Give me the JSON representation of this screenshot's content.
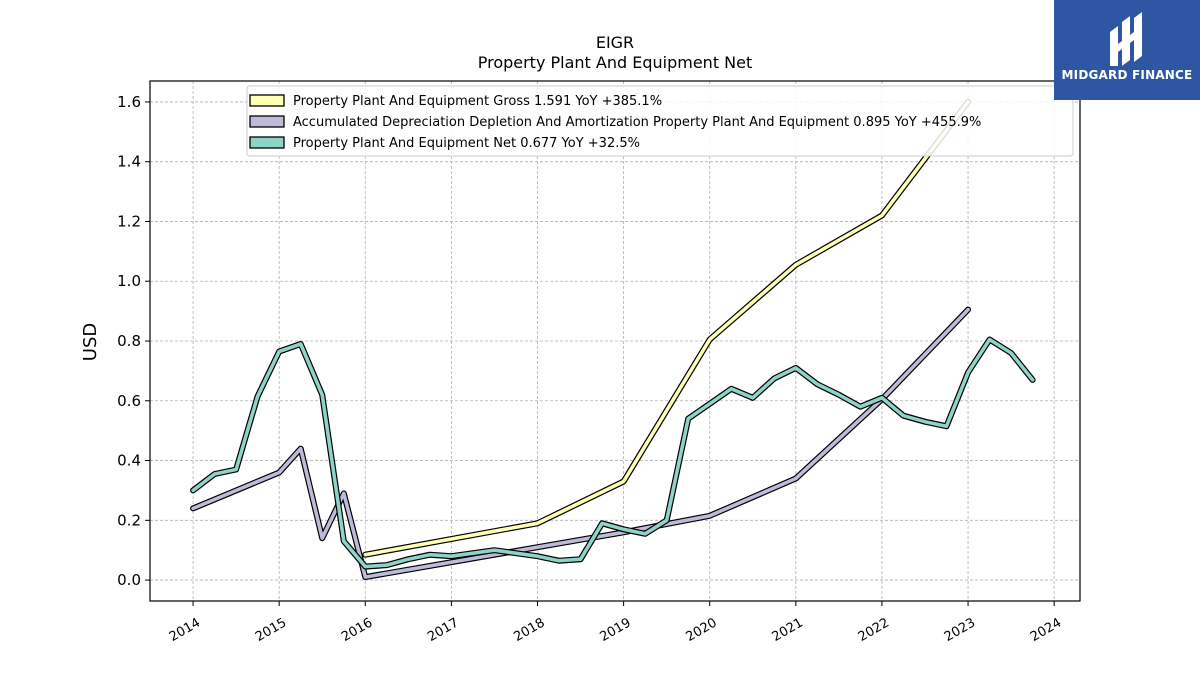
{
  "chart_data": {
    "type": "line",
    "title": "EIGR",
    "subtitle": "Property Plant And Equipment Net",
    "ylabel": "USD",
    "xlabel": "",
    "xlim": [
      2013.5,
      2024.3
    ],
    "ylim": [
      -0.07,
      1.67
    ],
    "yticks": [
      "0.0",
      "0.2",
      "0.4",
      "0.6",
      "0.8",
      "1.0",
      "1.2",
      "1.4",
      "1.6"
    ],
    "ytick_values": [
      0.0,
      0.2,
      0.4,
      0.6,
      0.8,
      1.0,
      1.2,
      1.4,
      1.6
    ],
    "xticks": [
      "2014",
      "2015",
      "2016",
      "2017",
      "2018",
      "2019",
      "2020",
      "2021",
      "2022",
      "2023",
      "2024"
    ],
    "xtick_values": [
      2014,
      2015,
      2016,
      2017,
      2018,
      2019,
      2020,
      2021,
      2022,
      2023,
      2024
    ],
    "grid": true,
    "legend_position": "top",
    "series": [
      {
        "name": "Property Plant And Equipment Gross  1.591 YoY +385.1%",
        "color": "#ffffb3",
        "points": [
          [
            2016.0,
            0.085
          ],
          [
            2018.0,
            0.19
          ],
          [
            2019.0,
            0.33
          ],
          [
            2020.0,
            0.805
          ],
          [
            2021.0,
            1.055
          ],
          [
            2022.0,
            1.22
          ],
          [
            2023.0,
            1.6
          ]
        ]
      },
      {
        "name": "Accumulated Depreciation Depletion And Amortization Property Plant And Equipment  0.895 YoY +455.9%",
        "color": "#bebada",
        "points": [
          [
            2014.0,
            0.24
          ],
          [
            2015.0,
            0.36
          ],
          [
            2015.25,
            0.44
          ],
          [
            2015.5,
            0.14
          ],
          [
            2015.75,
            0.29
          ],
          [
            2016.0,
            0.01
          ],
          [
            2018.0,
            0.11
          ],
          [
            2019.0,
            0.16
          ],
          [
            2020.0,
            0.215
          ],
          [
            2021.0,
            0.34
          ],
          [
            2022.0,
            0.605
          ],
          [
            2023.0,
            0.905
          ]
        ]
      },
      {
        "name": "Property Plant And Equipment Net  0.677 YoY +32.5%",
        "color": "#8dd3c7",
        "points": [
          [
            2014.0,
            0.3
          ],
          [
            2014.25,
            0.355
          ],
          [
            2014.5,
            0.37
          ],
          [
            2014.75,
            0.615
          ],
          [
            2015.0,
            0.765
          ],
          [
            2015.25,
            0.79
          ],
          [
            2015.5,
            0.62
          ],
          [
            2015.75,
            0.13
          ],
          [
            2016.0,
            0.045
          ],
          [
            2016.25,
            0.05
          ],
          [
            2016.5,
            0.07
          ],
          [
            2016.75,
            0.085
          ],
          [
            2017.0,
            0.08
          ],
          [
            2017.25,
            0.09
          ],
          [
            2017.5,
            0.1
          ],
          [
            2017.75,
            0.09
          ],
          [
            2018.0,
            0.08
          ],
          [
            2018.25,
            0.065
          ],
          [
            2018.5,
            0.07
          ],
          [
            2018.75,
            0.19
          ],
          [
            2019.0,
            0.17
          ],
          [
            2019.25,
            0.155
          ],
          [
            2019.5,
            0.2
          ],
          [
            2019.75,
            0.54
          ],
          [
            2020.0,
            0.59
          ],
          [
            2020.25,
            0.64
          ],
          [
            2020.5,
            0.61
          ],
          [
            2020.75,
            0.675
          ],
          [
            2021.0,
            0.71
          ],
          [
            2021.25,
            0.655
          ],
          [
            2021.5,
            0.62
          ],
          [
            2021.75,
            0.58
          ],
          [
            2022.0,
            0.61
          ],
          [
            2022.25,
            0.55
          ],
          [
            2022.5,
            0.53
          ],
          [
            2022.75,
            0.515
          ],
          [
            2023.0,
            0.695
          ],
          [
            2023.25,
            0.805
          ],
          [
            2023.5,
            0.76
          ],
          [
            2023.75,
            0.67
          ]
        ]
      }
    ]
  },
  "logo": {
    "text": "MIDGARD FINANCE",
    "background": "#2f56a3"
  }
}
